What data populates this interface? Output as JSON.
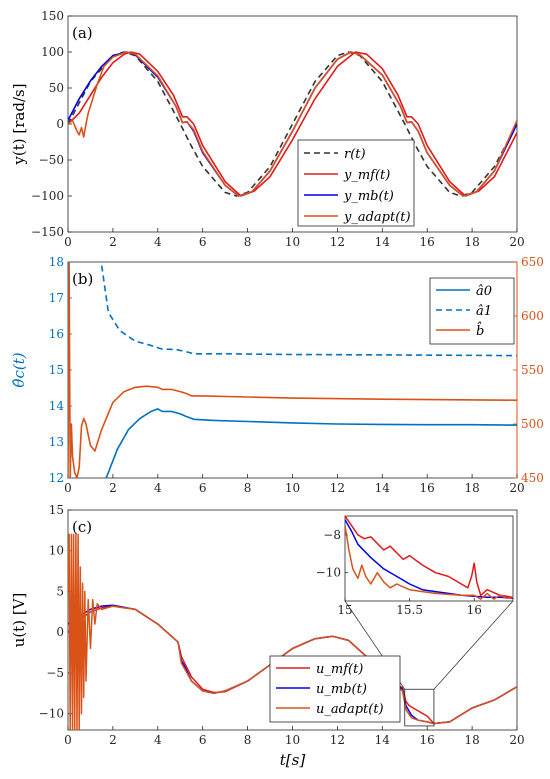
{
  "chart_data": [
    {
      "type": "line",
      "panel_label": "(a)",
      "ylabel": "y(t)  [rad/s]",
      "xlim": [
        0,
        20
      ],
      "ylim": [
        -150,
        150
      ],
      "xticks": [
        0,
        2,
        4,
        6,
        8,
        10,
        12,
        14,
        16,
        18,
        20
      ],
      "yticks": [
        -150,
        -100,
        -50,
        0,
        50,
        100,
        150
      ],
      "legend_position": "bottom-right",
      "series": [
        {
          "name": "r(t)",
          "color": "#333333",
          "dash": "dashed",
          "x": [
            0,
            1,
            2,
            2.5,
            3,
            4,
            5,
            5.5,
            6,
            7,
            7.5,
            8,
            9,
            10,
            11,
            12,
            12.5,
            13,
            14,
            15,
            15.5,
            16,
            17,
            17.5,
            18,
            19,
            20
          ],
          "y": [
            0,
            59,
            95,
            100,
            95,
            59,
            0,
            -31,
            -59,
            -95,
            -100,
            -95,
            -59,
            0,
            59,
            95,
            100,
            95,
            59,
            0,
            -31,
            -59,
            -95,
            -100,
            -95,
            -59,
            0
          ]
        },
        {
          "name": "y_mf(t)",
          "color": "#e31a1c",
          "dash": "solid",
          "x": [
            0,
            0.5,
            1,
            1.5,
            2,
            2.5,
            2.8,
            3.2,
            4,
            4.7,
            5.1,
            5.3,
            5.6,
            6,
            7,
            7.7,
            8.3,
            9,
            10,
            11,
            12,
            12.8,
            13.3,
            14,
            14.7,
            15.1,
            15.3,
            15.6,
            16,
            17,
            17.7,
            18.3,
            19,
            20
          ],
          "y": [
            0,
            15,
            40,
            65,
            85,
            97,
            100,
            97,
            73,
            40,
            10,
            10,
            0,
            -30,
            -80,
            -100,
            -93,
            -73,
            -22,
            35,
            80,
            100,
            97,
            77,
            40,
            10,
            10,
            0,
            -30,
            -80,
            -100,
            -93,
            -73,
            -12
          ]
        },
        {
          "name": "y_mb(t)",
          "color": "#0000ee",
          "dash": "solid",
          "x": [
            0,
            0.5,
            1,
            1.5,
            2,
            2.6,
            3,
            4,
            4.8,
            5.1,
            5.3,
            5.6,
            6,
            7,
            7.6,
            8.2,
            9,
            10,
            11,
            12,
            12.6,
            13,
            14,
            14.8,
            15.1,
            15.3,
            15.6,
            16,
            17,
            17.6,
            18.2,
            19,
            20
          ],
          "y": [
            5,
            35,
            60,
            80,
            95,
            100,
            96,
            65,
            25,
            2,
            3,
            -10,
            -40,
            -85,
            -100,
            -94,
            -65,
            -10,
            50,
            90,
            100,
            96,
            68,
            25,
            2,
            3,
            -10,
            -40,
            -85,
            -100,
            -94,
            -65,
            0
          ]
        },
        {
          "name": "y_adapt(t)",
          "color": "#d95319",
          "dash": "solid",
          "x": [
            0,
            0.2,
            0.4,
            0.5,
            0.6,
            0.7,
            0.8,
            0.9,
            1,
            1.3,
            1.6,
            2,
            2.6,
            3,
            4,
            4.8,
            5.1,
            5.3,
            5.6,
            6,
            7,
            7.6,
            8.2,
            9,
            10,
            11,
            12,
            12.6,
            13,
            14,
            14.8,
            15.1,
            15.3,
            15.6,
            16,
            17,
            17.6,
            18.2,
            19,
            20
          ],
          "y": [
            0,
            5,
            -10,
            -15,
            -5,
            -18,
            0,
            15,
            25,
            55,
            80,
            93,
            100,
            97,
            67,
            25,
            2,
            3,
            -8,
            -38,
            -85,
            -100,
            -94,
            -65,
            -10,
            50,
            90,
            100,
            96,
            68,
            25,
            2,
            3,
            -10,
            -40,
            -85,
            -100,
            -94,
            -65,
            5
          ]
        }
      ]
    },
    {
      "type": "line",
      "panel_label": "(b)",
      "ylabel_left": "θ̂c(t)",
      "xlim": [
        0,
        20
      ],
      "ylim_left": [
        12,
        18
      ],
      "ylim_right": [
        450,
        650
      ],
      "xticks": [
        0,
        2,
        4,
        6,
        8,
        10,
        12,
        14,
        16,
        18,
        20
      ],
      "yticks_left": [
        12,
        13,
        14,
        15,
        16,
        17,
        18
      ],
      "yticks_right": [
        450,
        500,
        550,
        600,
        650
      ],
      "left_axis_color": "#0072bd",
      "right_axis_color": "#d95319",
      "legend_position": "top-right",
      "series": [
        {
          "name": "â0",
          "color": "#0072bd",
          "dash": "solid",
          "axis": "left",
          "x": [
            1.7,
            2.2,
            2.7,
            3.2,
            3.7,
            4,
            4.2,
            4.6,
            5,
            5.3,
            5.6,
            6.5,
            8,
            10,
            12,
            14,
            16,
            18,
            20
          ],
          "y": [
            12,
            12.8,
            13.35,
            13.65,
            13.85,
            13.92,
            13.85,
            13.85,
            13.78,
            13.7,
            13.63,
            13.6,
            13.57,
            13.53,
            13.5,
            13.49,
            13.48,
            13.48,
            13.47
          ]
        },
        {
          "name": "â1",
          "color": "#0072bd",
          "dash": "dashed",
          "axis": "left",
          "x": [
            1.5,
            1.8,
            2.3,
            3,
            3.6,
            4,
            4.2,
            4.8,
            5.2,
            5.6,
            7,
            10,
            14,
            20
          ],
          "y": [
            17.9,
            16.6,
            16.1,
            15.8,
            15.7,
            15.62,
            15.58,
            15.57,
            15.52,
            15.45,
            15.45,
            15.43,
            15.42,
            15.4
          ]
        },
        {
          "name": "b̂",
          "color": "#d95319",
          "dash": "solid",
          "axis": "right",
          "x": [
            0,
            0.05,
            0.1,
            0.15,
            0.2,
            0.3,
            0.4,
            0.5,
            0.6,
            0.7,
            0.8,
            0.9,
            1,
            1.2,
            1.5,
            2,
            2.5,
            3,
            3.5,
            4,
            4.2,
            4.6,
            5,
            5.3,
            5.5,
            6,
            8,
            10,
            14,
            20
          ],
          "y": [
            450,
            650,
            450,
            500,
            470,
            455,
            450,
            460,
            498,
            505,
            500,
            490,
            480,
            475,
            495,
            520,
            530,
            534,
            535,
            534,
            532,
            532,
            530,
            528,
            526,
            526,
            525,
            524,
            523,
            522
          ]
        }
      ]
    },
    {
      "type": "line",
      "panel_label": "(c)",
      "ylabel": "u(t)  [V]",
      "xlabel": "t[s]",
      "xlim": [
        0,
        20
      ],
      "ylim": [
        -12,
        15
      ],
      "xticks": [
        0,
        2,
        4,
        6,
        8,
        10,
        12,
        14,
        16,
        18,
        20
      ],
      "yticks": [
        -10,
        -5,
        0,
        5,
        10,
        15
      ],
      "legend_position": "bottom-center",
      "series": [
        {
          "name": "u_mf(t)",
          "color": "#e31a1c",
          "dash": "solid",
          "x": [
            0,
            0.5,
            1,
            1.5,
            2,
            3,
            4,
            4.9,
            5.05,
            5.2,
            5.5,
            6,
            6.5,
            7,
            8,
            9,
            10,
            11,
            11.8,
            12.5,
            13.5,
            14.5,
            14.9,
            15.05,
            15.2,
            15.5,
            16,
            16.3,
            17,
            18,
            19,
            20
          ],
          "y": [
            0,
            1.5,
            2.5,
            3,
            3.2,
            2.8,
            1,
            -1.2,
            -3,
            -3.8,
            -5.5,
            -7,
            -7.4,
            -7.3,
            -6,
            -4,
            -2,
            -0.8,
            -0.5,
            -1,
            -3.5,
            -6.2,
            -6.8,
            -8.5,
            -9,
            -9.5,
            -10.3,
            -11.2,
            -11,
            -9.3,
            -8.3,
            -6.7
          ]
        },
        {
          "name": "u_mb(t)",
          "color": "#0000ee",
          "dash": "solid",
          "x": [
            0,
            0.5,
            1,
            1.5,
            2,
            3,
            4,
            4.9,
            5.05,
            5.2,
            5.5,
            6,
            6.5,
            7,
            8,
            9,
            10,
            11,
            11.8,
            12.5,
            13.5,
            14.5,
            14.9,
            15.05,
            15.3,
            15.6,
            16,
            16.3,
            17,
            18,
            19,
            20
          ],
          "y": [
            1,
            2,
            2.8,
            3.2,
            3.3,
            2.8,
            1,
            -1.2,
            -3.5,
            -4.2,
            -6,
            -7.2,
            -7.5,
            -7.2,
            -6,
            -4,
            -2,
            -0.8,
            -0.5,
            -1,
            -3.5,
            -6.2,
            -7,
            -9,
            -10.2,
            -10.8,
            -11,
            -11.2,
            -11,
            -9.3,
            -8.3,
            -6.7
          ]
        },
        {
          "name": "u_adapt(t)",
          "color": "#d95319",
          "dash": "solid",
          "x": [
            0,
            0.05,
            0.1,
            0.15,
            0.2,
            0.25,
            0.3,
            0.35,
            0.4,
            0.45,
            0.5,
            0.55,
            0.6,
            0.65,
            0.7,
            0.75,
            0.8,
            0.9,
            1,
            1.1,
            1.2,
            1.3,
            1.5,
            2,
            3,
            4,
            4.9,
            5.05,
            5.2,
            5.5,
            6,
            6.5,
            7,
            8,
            9,
            10,
            11,
            11.8,
            12.5,
            13.5,
            14.5,
            14.9,
            15.05,
            15.3,
            15.6,
            16,
            16.3,
            17,
            18,
            19,
            20
          ],
          "y": [
            5,
            12,
            -12,
            12,
            -12,
            12,
            -12,
            12,
            -12,
            12,
            -12,
            8,
            -10,
            6,
            -8,
            5,
            -6,
            4,
            -2,
            4,
            1,
            3.5,
            2.8,
            3.2,
            2.8,
            1,
            -1.2,
            -3.8,
            -4.5,
            -6,
            -7.2,
            -7.5,
            -7.2,
            -6,
            -4,
            -2,
            -0.8,
            -0.5,
            -1,
            -3.5,
            -6.2,
            -7.2,
            -9.5,
            -10.5,
            -10.8,
            -11,
            -11.2,
            -11,
            -9.3,
            -8.3,
            -6.7
          ]
        }
      ],
      "inset": {
        "xlim": [
          15,
          16.3
        ],
        "ylim": [
          -11.5,
          -7
        ],
        "xticks": [
          15,
          15.5,
          16
        ],
        "yticks": [
          -10,
          -8
        ],
        "series": [
          {
            "name": "u_mf(t)",
            "color": "#e31a1c",
            "x": [
              15,
              15.05,
              15.1,
              15.15,
              15.2,
              15.3,
              15.35,
              15.45,
              15.5,
              15.6,
              15.7,
              15.8,
              15.9,
              15.95,
              15.98,
              16.0,
              16.02,
              16.05,
              16.1,
              16.2,
              16.3
            ],
            "y": [
              -7,
              -7.5,
              -8,
              -8.2,
              -8.1,
              -8.8,
              -8.6,
              -9.3,
              -9.1,
              -9.6,
              -10,
              -10.2,
              -10.6,
              -10.8,
              -10.2,
              -9.5,
              -10.5,
              -11.2,
              -10.9,
              -11.2,
              -11.3
            ]
          },
          {
            "name": "u_mb(t)",
            "color": "#0000ee",
            "x": [
              15,
              15.05,
              15.1,
              15.2,
              15.3,
              15.4,
              15.5,
              15.6,
              15.7,
              15.8,
              15.9,
              16.0,
              16.1,
              16.2,
              16.3
            ],
            "y": [
              -7.2,
              -7.8,
              -8.5,
              -9.2,
              -9.8,
              -10.2,
              -10.6,
              -10.9,
              -11.0,
              -11.1,
              -11.2,
              -11.25,
              -11.3,
              -11.3,
              -11.35
            ]
          },
          {
            "name": "u_adapt(t)",
            "color": "#d95319",
            "x": [
              15,
              15.03,
              15.06,
              15.1,
              15.13,
              15.16,
              15.2,
              15.25,
              15.3,
              15.35,
              15.4,
              15.5,
              15.6,
              15.7,
              15.8,
              15.9,
              16.0,
              16.05,
              16.1,
              16.15,
              16.2,
              16.25,
              16.3
            ],
            "y": [
              -7.5,
              -8.8,
              -9.8,
              -10.3,
              -9.6,
              -10.2,
              -10.6,
              -10,
              -10.5,
              -10.8,
              -10.6,
              -10.9,
              -11,
              -11.1,
              -11.15,
              -11.2,
              -11.2,
              -11.4,
              -11.1,
              -11.4,
              -11.2,
              -11.35,
              -11.3
            ]
          }
        ]
      }
    }
  ]
}
